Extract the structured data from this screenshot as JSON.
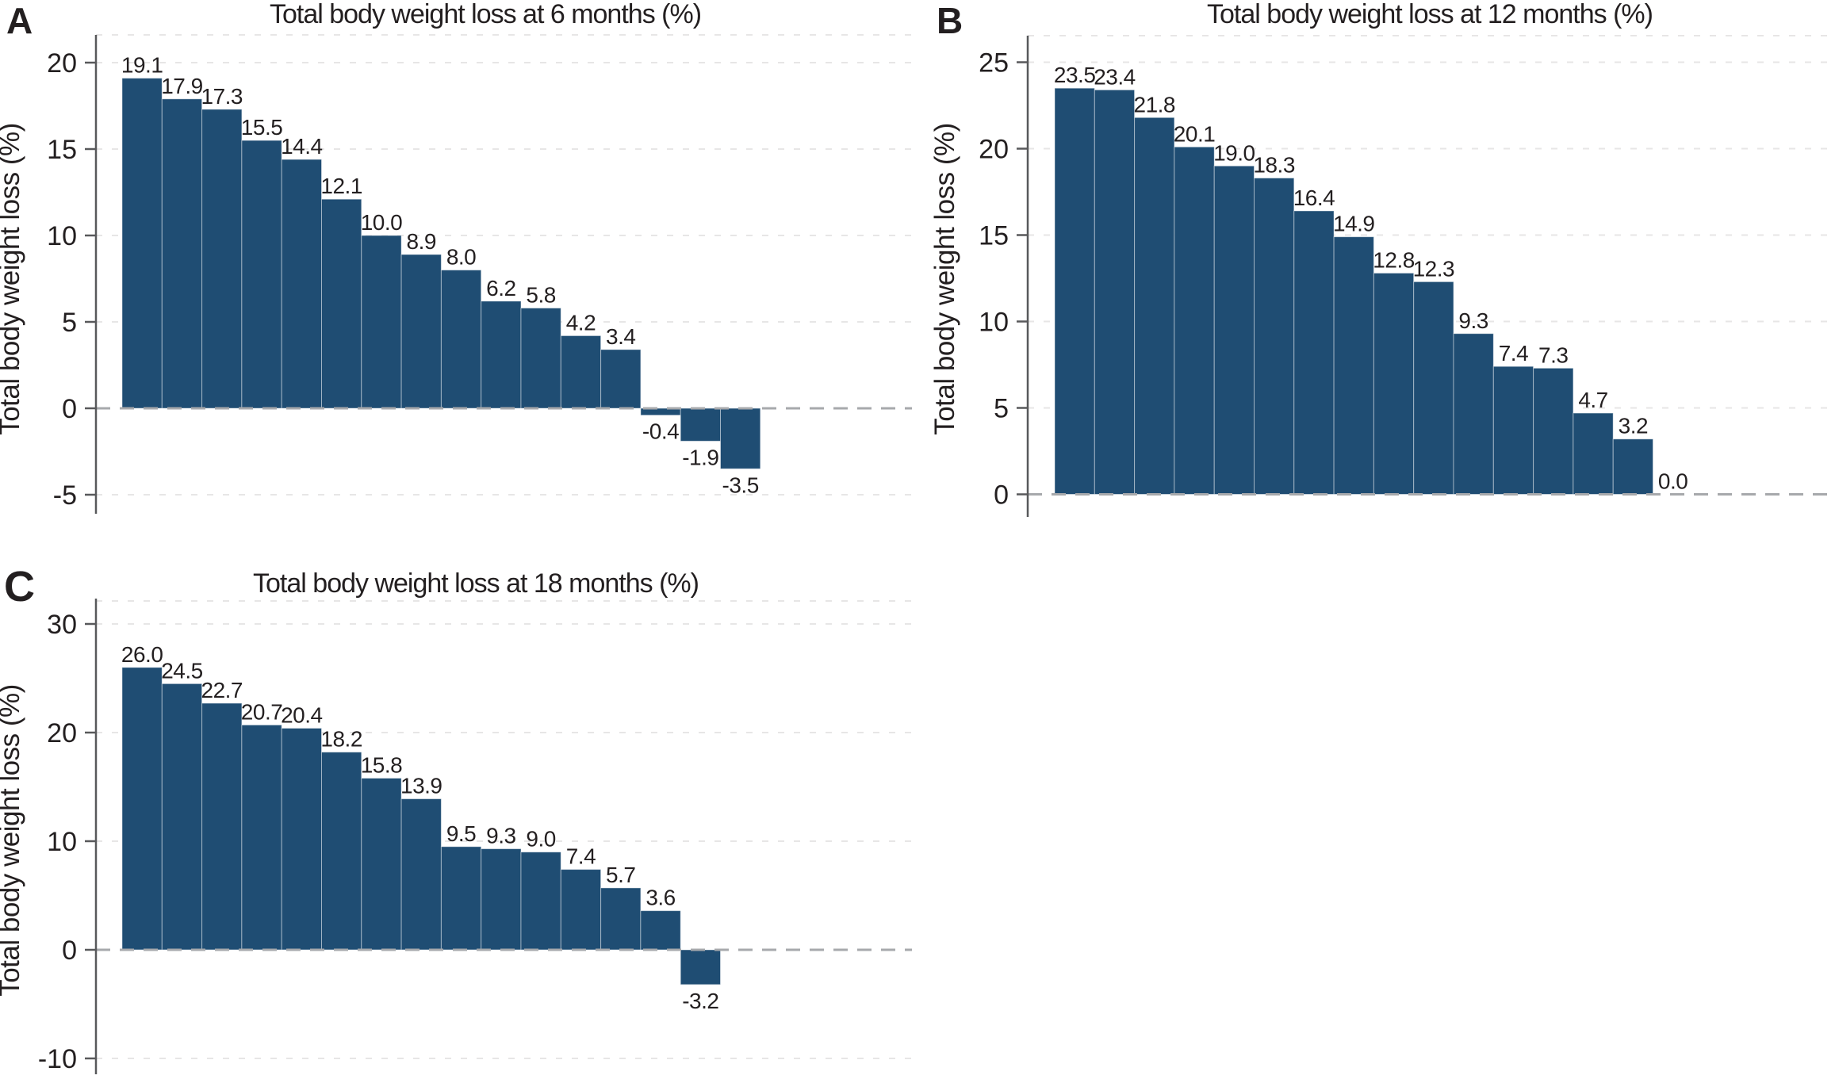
{
  "figure": {
    "background": "#ffffff",
    "bar_color": "#1f4d73",
    "bar_edge_color": "#ffffff",
    "text_color": "#231f20",
    "axis_color": "#58595b",
    "grid_color": "#e7e6e6",
    "zero_line_color": "#a7a9ac"
  },
  "chart_data": [
    {
      "id": "A",
      "panel_label": "A",
      "type": "bar",
      "title": "Total body weight loss at 6 months (%)",
      "xlabel": "",
      "ylabel": "Total body weight loss (%)",
      "yticks": [
        20,
        15,
        10,
        5,
        0,
        -5
      ],
      "ylim": [
        -6.5,
        21.6
      ],
      "grid": true,
      "legend": false,
      "values": [
        19.1,
        17.9,
        17.3,
        15.5,
        14.4,
        12.1,
        10.0,
        8.9,
        8.0,
        6.2,
        5.8,
        4.2,
        3.4,
        -0.4,
        -1.9,
        -3.5
      ],
      "bar_labels": [
        "19.1",
        "17.9",
        "17.3",
        "15.5",
        "14.4",
        "12.1",
        "10.0",
        "8.9",
        "8.0",
        "6.2",
        "5.8",
        "4.2",
        "3.4",
        "-0.4",
        "-1.9",
        "-3.5"
      ]
    },
    {
      "id": "B",
      "panel_label": "B",
      "type": "bar",
      "title": "Total body weight loss at 12 months (%)",
      "xlabel": "",
      "ylabel": "Total body weight loss (%)",
      "yticks": [
        25,
        20,
        15,
        10,
        5,
        0
      ],
      "ylim": [
        -1.3,
        26.5
      ],
      "grid": true,
      "legend": false,
      "values": [
        23.5,
        23.4,
        21.8,
        20.1,
        19.0,
        18.3,
        16.4,
        14.9,
        12.8,
        12.3,
        9.3,
        7.4,
        7.3,
        4.7,
        3.2,
        0.0
      ],
      "bar_labels": [
        "23.5",
        "23.4",
        "21.8",
        "20.1",
        "19.0",
        "18.3",
        "16.4",
        "14.9",
        "12.8",
        "12.3",
        "9.3",
        "7.4",
        "7.3",
        "4.7",
        "3.2",
        "0.0"
      ]
    },
    {
      "id": "C",
      "panel_label": "C",
      "type": "bar",
      "title": "Total body weight loss at 18 months (%)",
      "xlabel": "",
      "ylabel": "Total body weight loss (%)",
      "yticks": [
        30,
        20,
        10,
        0,
        -10
      ],
      "ylim": [
        -11.5,
        32.3
      ],
      "grid": true,
      "legend": false,
      "values": [
        26.0,
        24.5,
        22.7,
        20.7,
        20.4,
        18.2,
        15.8,
        13.9,
        9.5,
        9.3,
        9.0,
        7.4,
        5.7,
        3.6,
        -3.2
      ],
      "bar_labels": [
        "26.0",
        "24.5",
        "22.7",
        "20.7",
        "20.4",
        "18.2",
        "15.8",
        "13.9",
        "9.5",
        "9.3",
        "9.0",
        "7.4",
        "5.7",
        "3.6",
        "-3.2"
      ]
    }
  ]
}
